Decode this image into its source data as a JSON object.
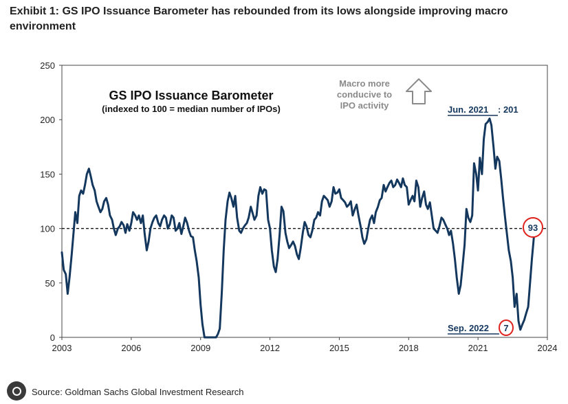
{
  "exhibit_title": "Exhibit 1: GS IPO Issuance Barometer has rebounded from its lows alongside improving macro environment",
  "source": "Source: Goldman Sachs Global Investment Research",
  "chart_data": {
    "type": "line",
    "title": "GS IPO Issuance Barometer",
    "subtitle": "(indexed to 100 = median number of IPOs)",
    "xlabel": "",
    "ylabel": "",
    "xlim": [
      2003,
      2024
    ],
    "ylim": [
      0,
      250
    ],
    "x_ticks": [
      2003,
      2006,
      2009,
      2012,
      2015,
      2018,
      2021,
      2024
    ],
    "y_ticks": [
      0,
      50,
      100,
      150,
      200,
      250
    ],
    "grid": false,
    "reference_line": {
      "y": 100,
      "style": "dashed"
    },
    "line_color": "#14375e",
    "highlight_color": "#e0201b",
    "annotations": {
      "macro_text": [
        "Macro more",
        "conducive to",
        "IPO activity"
      ],
      "peak_label_date": "Jun. 2021",
      "peak_label_value": ": 201",
      "trough_label_date": "Sep. 2022",
      "trough_value": "7",
      "latest_value": "93"
    },
    "series": [
      {
        "x": [
          2003.0,
          2003.08,
          2003.17,
          2003.25,
          2003.33,
          2003.42,
          2003.5,
          2003.58,
          2003.67,
          2003.75,
          2003.83,
          2003.92,
          2004.0,
          2004.08,
          2004.17,
          2004.25,
          2004.33,
          2004.42,
          2004.5,
          2004.58,
          2004.67,
          2004.75,
          2004.83,
          2004.92,
          2005.0,
          2005.08,
          2005.17,
          2005.25,
          2005.33,
          2005.42,
          2005.5,
          2005.58,
          2005.67,
          2005.75,
          2005.83,
          2005.92,
          2006.0,
          2006.08,
          2006.17,
          2006.25,
          2006.33,
          2006.42,
          2006.5,
          2006.58,
          2006.67,
          2006.75,
          2006.83,
          2006.92,
          2007.0,
          2007.08,
          2007.17,
          2007.25,
          2007.33,
          2007.42,
          2007.5,
          2007.58,
          2007.67,
          2007.75,
          2007.83,
          2007.92,
          2008.0,
          2008.08,
          2008.17,
          2008.25,
          2008.33,
          2008.42,
          2008.5,
          2008.58,
          2008.67,
          2008.75,
          2008.83,
          2008.92,
          2009.0,
          2009.08,
          2009.17,
          2009.25,
          2009.33,
          2009.42,
          2009.5,
          2009.58,
          2009.67,
          2009.75,
          2009.83,
          2009.92,
          2010.0,
          2010.08,
          2010.17,
          2010.25,
          2010.33,
          2010.42,
          2010.5,
          2010.58,
          2010.67,
          2010.75,
          2010.83,
          2010.92,
          2011.0,
          2011.08,
          2011.17,
          2011.25,
          2011.33,
          2011.42,
          2011.5,
          2011.58,
          2011.67,
          2011.75,
          2011.83,
          2011.92,
          2012.0,
          2012.08,
          2012.17,
          2012.25,
          2012.33,
          2012.42,
          2012.5,
          2012.58,
          2012.67,
          2012.75,
          2012.83,
          2012.92,
          2013.0,
          2013.08,
          2013.17,
          2013.25,
          2013.33,
          2013.42,
          2013.5,
          2013.58,
          2013.67,
          2013.75,
          2013.83,
          2013.92,
          2014.0,
          2014.08,
          2014.17,
          2014.25,
          2014.33,
          2014.42,
          2014.5,
          2014.58,
          2014.67,
          2014.75,
          2014.83,
          2014.92,
          2015.0,
          2015.08,
          2015.17,
          2015.25,
          2015.33,
          2015.42,
          2015.5,
          2015.58,
          2015.67,
          2015.75,
          2015.83,
          2015.92,
          2016.0,
          2016.08,
          2016.17,
          2016.25,
          2016.33,
          2016.42,
          2016.5,
          2016.58,
          2016.67,
          2016.75,
          2016.83,
          2016.92,
          2017.0,
          2017.08,
          2017.17,
          2017.25,
          2017.33,
          2017.42,
          2017.5,
          2017.58,
          2017.67,
          2017.75,
          2017.83,
          2017.92,
          2018.0,
          2018.08,
          2018.17,
          2018.25,
          2018.33,
          2018.42,
          2018.5,
          2018.58,
          2018.67,
          2018.75,
          2018.83,
          2018.92,
          2019.0,
          2019.08,
          2019.17,
          2019.25,
          2019.33,
          2019.42,
          2019.5,
          2019.58,
          2019.67,
          2019.75,
          2019.83,
          2019.92,
          2020.0,
          2020.08,
          2020.17,
          2020.25,
          2020.33,
          2020.42,
          2020.5,
          2020.58,
          2020.67,
          2020.75,
          2020.83,
          2020.92,
          2021.0,
          2021.08,
          2021.17,
          2021.25,
          2021.33,
          2021.42,
          2021.5,
          2021.58,
          2021.67,
          2021.75,
          2021.83,
          2021.92,
          2022.0,
          2022.08,
          2022.17,
          2022.25,
          2022.33,
          2022.42,
          2022.5,
          2022.58,
          2022.67,
          2022.75,
          2022.83,
          2022.92,
          2023.0,
          2023.08,
          2023.17,
          2023.25,
          2023.33,
          2023.42
        ],
        "y": [
          78,
          62,
          58,
          40,
          55,
          75,
          95,
          115,
          105,
          130,
          135,
          132,
          140,
          150,
          155,
          148,
          140,
          135,
          125,
          120,
          115,
          118,
          125,
          128,
          122,
          112,
          108,
          100,
          94,
          100,
          102,
          106,
          103,
          96,
          104,
          98,
          105,
          115,
          112,
          108,
          112,
          105,
          112,
          95,
          80,
          88,
          100,
          106,
          110,
          112,
          105,
          102,
          108,
          112,
          110,
          100,
          104,
          112,
          110,
          98,
          100,
          105,
          95,
          102,
          110,
          105,
          98,
          93,
          92,
          80,
          70,
          55,
          30,
          12,
          0,
          0,
          0,
          0,
          0,
          0,
          0,
          3,
          8,
          42,
          80,
          108,
          125,
          133,
          128,
          120,
          130,
          110,
          98,
          96,
          100,
          103,
          105,
          110,
          120,
          114,
          108,
          112,
          130,
          138,
          132,
          136,
          135,
          108,
          100,
          80,
          65,
          60,
          72,
          95,
          120,
          116,
          96,
          88,
          82,
          85,
          88,
          84,
          76,
          72,
          82,
          96,
          106,
          102,
          94,
          92,
          98,
          108,
          110,
          115,
          112,
          125,
          130,
          128,
          126,
          120,
          125,
          138,
          132,
          133,
          136,
          128,
          126,
          124,
          120,
          122,
          125,
          112,
          118,
          122,
          112,
          102,
          92,
          86,
          90,
          100,
          108,
          112,
          105,
          115,
          120,
          126,
          128,
          140,
          134,
          138,
          142,
          144,
          138,
          140,
          145,
          142,
          138,
          146,
          140,
          138,
          122,
          126,
          130,
          125,
          144,
          138,
          120,
          128,
          134,
          122,
          118,
          124,
          112,
          100,
          98,
          96,
          102,
          110,
          108,
          104,
          100,
          94,
          98,
          86,
          72,
          55,
          40,
          48,
          65,
          85,
          118,
          110,
          106,
          112,
          160,
          150,
          135,
          165,
          150,
          182,
          196,
          198,
          201,
          195,
          175,
          155,
          166,
          162,
          146,
          128,
          110,
          95,
          80,
          70,
          55,
          28,
          40,
          15,
          7,
          12,
          16,
          22,
          28,
          50,
          72,
          93
        ]
      }
    ]
  }
}
